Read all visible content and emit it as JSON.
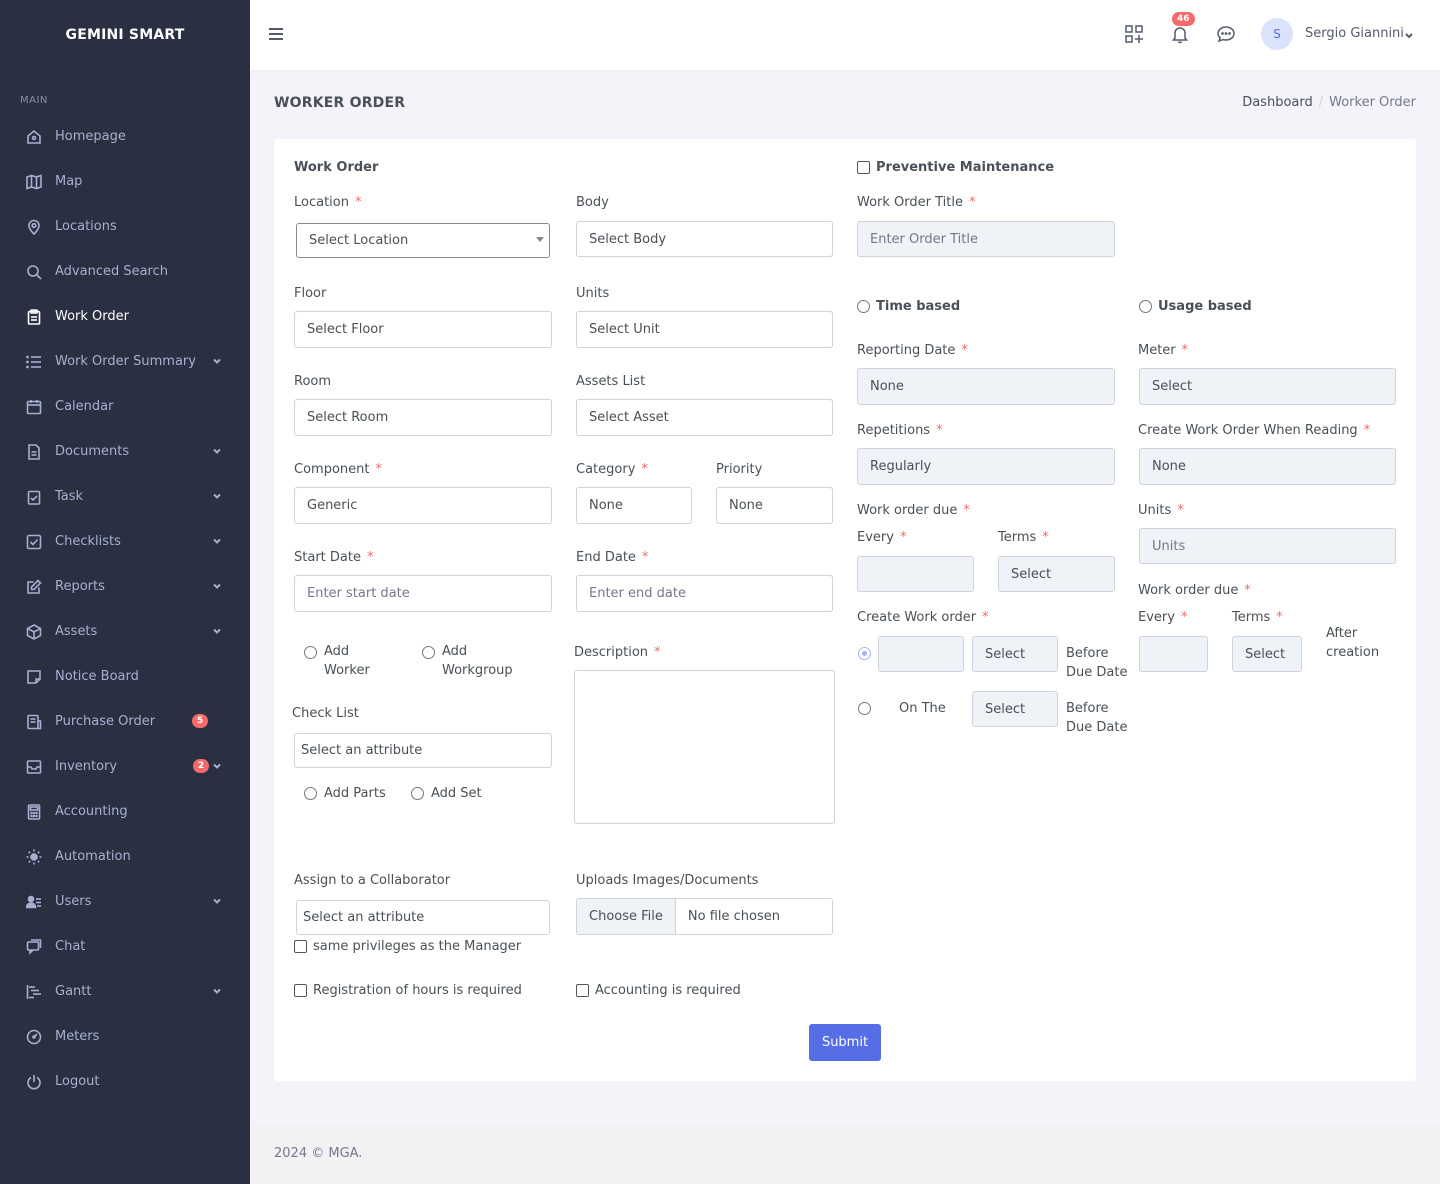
{
  "brand": "GEMINI SMART",
  "sidebar": {
    "section_title": "MAIN",
    "items": [
      {
        "label": "Homepage",
        "icon": "home-icon"
      },
      {
        "label": "Map",
        "icon": "map-icon"
      },
      {
        "label": "Locations",
        "icon": "location-pin-icon"
      },
      {
        "label": "Advanced Search",
        "icon": "search-icon"
      },
      {
        "label": "Work Order",
        "icon": "clipboard-icon",
        "active": true
      },
      {
        "label": "Work Order Summary",
        "icon": "list-icon",
        "has_submenu": true
      },
      {
        "label": "Calendar",
        "icon": "calendar-icon"
      },
      {
        "label": "Documents",
        "icon": "document-icon",
        "has_submenu": true
      },
      {
        "label": "Task",
        "icon": "task-icon",
        "has_submenu": true
      },
      {
        "label": "Checklists",
        "icon": "checkbox-icon",
        "has_submenu": true
      },
      {
        "label": "Reports",
        "icon": "edit-icon",
        "has_submenu": true
      },
      {
        "label": "Assets",
        "icon": "cube-icon",
        "has_submenu": true
      },
      {
        "label": "Notice Board",
        "icon": "note-icon"
      },
      {
        "label": "Purchase Order",
        "icon": "receipt-icon",
        "badge": "5"
      },
      {
        "label": "Inventory",
        "icon": "inbox-icon",
        "badge": "2",
        "has_submenu": true
      },
      {
        "label": "Accounting",
        "icon": "calculator-icon"
      },
      {
        "label": "Automation",
        "icon": "sun-icon"
      },
      {
        "label": "Users",
        "icon": "users-icon",
        "has_submenu": true
      },
      {
        "label": "Chat",
        "icon": "chat-icon"
      },
      {
        "label": "Gantt",
        "icon": "gantt-icon",
        "has_submenu": true
      },
      {
        "label": "Meters",
        "icon": "gauge-icon"
      },
      {
        "label": "Logout",
        "icon": "power-icon"
      }
    ]
  },
  "topbar": {
    "notification_count": "46",
    "avatar_initial": "S",
    "user_name": "Sergio Giannini"
  },
  "page": {
    "title": "WORKER ORDER",
    "breadcrumb": {
      "home": "Dashboard",
      "current": "Worker Order"
    }
  },
  "form": {
    "section_title": "Work Order",
    "location": {
      "label": "Location",
      "value": "Select Location"
    },
    "body": {
      "label": "Body",
      "value": "Select Body"
    },
    "floor": {
      "label": "Floor",
      "value": "Select Floor"
    },
    "units": {
      "label": "Units",
      "value": "Select Unit"
    },
    "room": {
      "label": "Room",
      "value": "Select Room"
    },
    "assets": {
      "label": "Assets List",
      "value": "Select Asset"
    },
    "component": {
      "label": "Component",
      "value": "Generic"
    },
    "category": {
      "label": "Category",
      "value": "None"
    },
    "priority": {
      "label": "Priority",
      "value": "None"
    },
    "start_date": {
      "label": "Start Date",
      "placeholder": "Enter start date"
    },
    "end_date": {
      "label": "End Date",
      "placeholder": "Enter end date"
    },
    "add_worker": {
      "line1": "Add",
      "line2": "Worker"
    },
    "add_workgroup": {
      "line1": "Add",
      "line2": "Workgroup"
    },
    "description": {
      "label": "Description"
    },
    "checklist": {
      "label": "Check List",
      "value": "Select an attribute"
    },
    "add_parts": "Add Parts",
    "add_set": "Add Set",
    "collaborator": {
      "label": "Assign to a Collaborator",
      "value": "Select an attribute"
    },
    "same_privileges": "same privileges as the Manager",
    "uploads": {
      "label": "Uploads Images/Documents",
      "button": "Choose File",
      "status": "No file chosen"
    },
    "hours_required": "Registration of hours is required",
    "accounting_required": "Accounting is required",
    "submit": "Submit"
  },
  "pm": {
    "preventive_label": "Preventive Maintenance",
    "title": {
      "label": "Work Order Title",
      "placeholder": "Enter Order Title"
    },
    "time_based": "Time based",
    "usage_based": "Usage based",
    "reporting_date": {
      "label": "Reporting Date",
      "value": "None"
    },
    "meter": {
      "label": "Meter",
      "value": "Select"
    },
    "repetitions": {
      "label": "Repetitions",
      "value": "Regularly"
    },
    "create_when_reading": {
      "label": "Create Work Order When Reading",
      "value": "None"
    },
    "due_left": {
      "label": "Work order due",
      "every": "Every",
      "terms": "Terms",
      "terms_value": "Select"
    },
    "units": {
      "label": "Units",
      "placeholder": "Units"
    },
    "due_right": {
      "label": "Work order due",
      "every": "Every",
      "terms": "Terms",
      "terms_value": "Select",
      "after1": "After",
      "after2": "creation"
    },
    "create_wo": {
      "label": "Create Work order",
      "select1": "Select",
      "before1a": "Before",
      "before1b": "Due Date",
      "on_the": "On The",
      "select2": "Select",
      "before2a": "Before",
      "before2b": "Due Date"
    }
  },
  "footer": "2024 © MGA."
}
